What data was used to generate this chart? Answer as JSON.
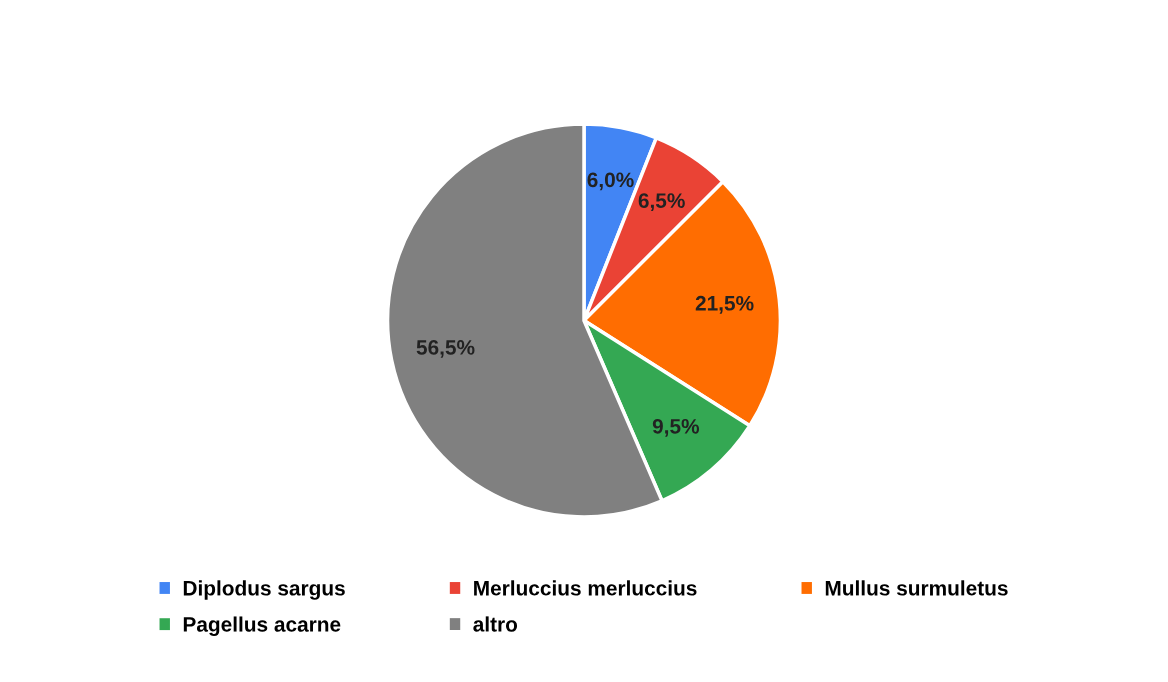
{
  "chart_data": {
    "type": "pie",
    "categories": [
      "Diplodus sargus",
      "Merluccius merluccius",
      "Mullus surmuletus",
      "Pagellus acarne",
      "altro"
    ],
    "values": [
      6.0,
      6.5,
      21.5,
      9.5,
      56.5
    ],
    "colors": [
      "#4285f4",
      "#ea4335",
      "#ff6d01",
      "#34a853",
      "#808080"
    ],
    "value_labels": [
      "6,0%",
      "6,5%",
      "21,5%",
      "9,5%",
      "56,5%"
    ],
    "legend": "bottom"
  }
}
